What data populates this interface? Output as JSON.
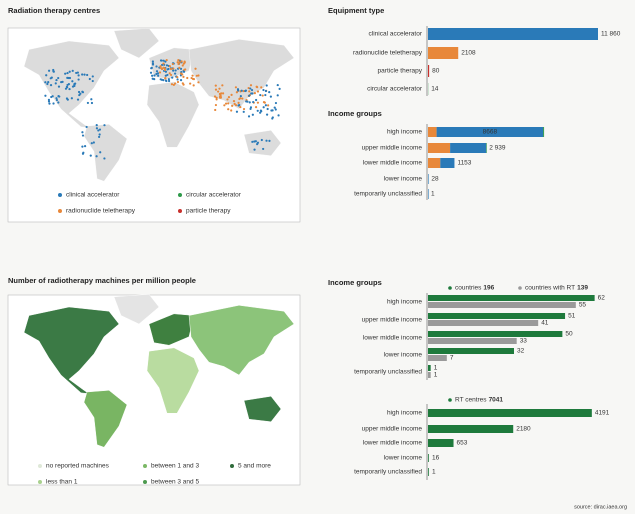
{
  "chart_data": [
    {
      "type": "map",
      "title": "Radiation therapy centres",
      "legend": [
        {
          "name": "clinical accelerator",
          "color": "#2a7ab8"
        },
        {
          "name": "circular accelerator",
          "color": "#2e9a4a"
        },
        {
          "name": "radionuclide teletherapy",
          "color": "#e8883a"
        },
        {
          "name": "particle therapy",
          "color": "#c8302c"
        }
      ]
    },
    {
      "type": "bar",
      "title": "Equipment type",
      "categories": [
        "clinical accelerator",
        "radionuclide teletherapy",
        "particle therapy",
        "circular accelerator"
      ],
      "values": [
        11860,
        2108,
        80,
        14
      ],
      "value_labels": [
        "11 860",
        "2108",
        "80",
        "14"
      ],
      "colors": [
        "#2a7ab8",
        "#e8883a",
        "#c8302c",
        "#2e9a4a"
      ],
      "xlim": [
        0,
        12000
      ]
    },
    {
      "type": "stacked_bar",
      "title": "Income groups",
      "categories": [
        "high income",
        "upper middle income",
        "lower middle income",
        "lower income",
        "temporarily unclassified"
      ],
      "series": [
        {
          "color": "#e8883a",
          "values": [
            700,
            1800,
            1000,
            null,
            null
          ]
        },
        {
          "color": "#2a7ab8",
          "values": [
            8668,
            2939,
            1153,
            28,
            1
          ],
          "value_labels": [
            "8668",
            "2 939",
            "1153",
            "28",
            "1"
          ]
        },
        {
          "color": "#2e9a4a",
          "values": [
            80,
            40,
            null,
            null,
            null
          ]
        }
      ],
      "xlim": [
        0,
        14000
      ]
    },
    {
      "type": "map",
      "title": "Number of radiotherapy machines per million people",
      "legend": [
        {
          "name": "no reported machines",
          "color": "#dfe8d8"
        },
        {
          "name": "less than 1",
          "color": "#a9d18e"
        },
        {
          "name": "between 1 and 3",
          "color": "#7bb865"
        },
        {
          "name": "between 3 and 5",
          "color": "#4d9a4f"
        },
        {
          "name": "5 and more",
          "color": "#2f6b3a"
        }
      ]
    },
    {
      "type": "grouped_bar",
      "title": "Income groups",
      "categories": [
        "high income",
        "upper middle income",
        "lower middle income",
        "lower income",
        "temporarily unclassified"
      ],
      "series": [
        {
          "name": "countries",
          "total": 196,
          "color": "#1e7a3c",
          "values": [
            62,
            51,
            50,
            32,
            1
          ]
        },
        {
          "name": "countries with RT",
          "total": 139,
          "color": "#9a9a9a",
          "values": [
            55,
            41,
            33,
            7,
            1
          ]
        }
      ],
      "xlim": [
        0,
        64
      ]
    },
    {
      "type": "grouped_bar",
      "categories": [
        "high income",
        "upper middle income",
        "lower middle income",
        "lower income",
        "temporarily unclassified"
      ],
      "series": [
        {
          "name": "RT centres",
          "total": 7041,
          "color": "#1e7a3c",
          "values": [
            4191,
            2180,
            653,
            16,
            1
          ]
        }
      ],
      "xlim": [
        0,
        4400
      ]
    }
  ],
  "source": "source: dirac.iaea.org"
}
